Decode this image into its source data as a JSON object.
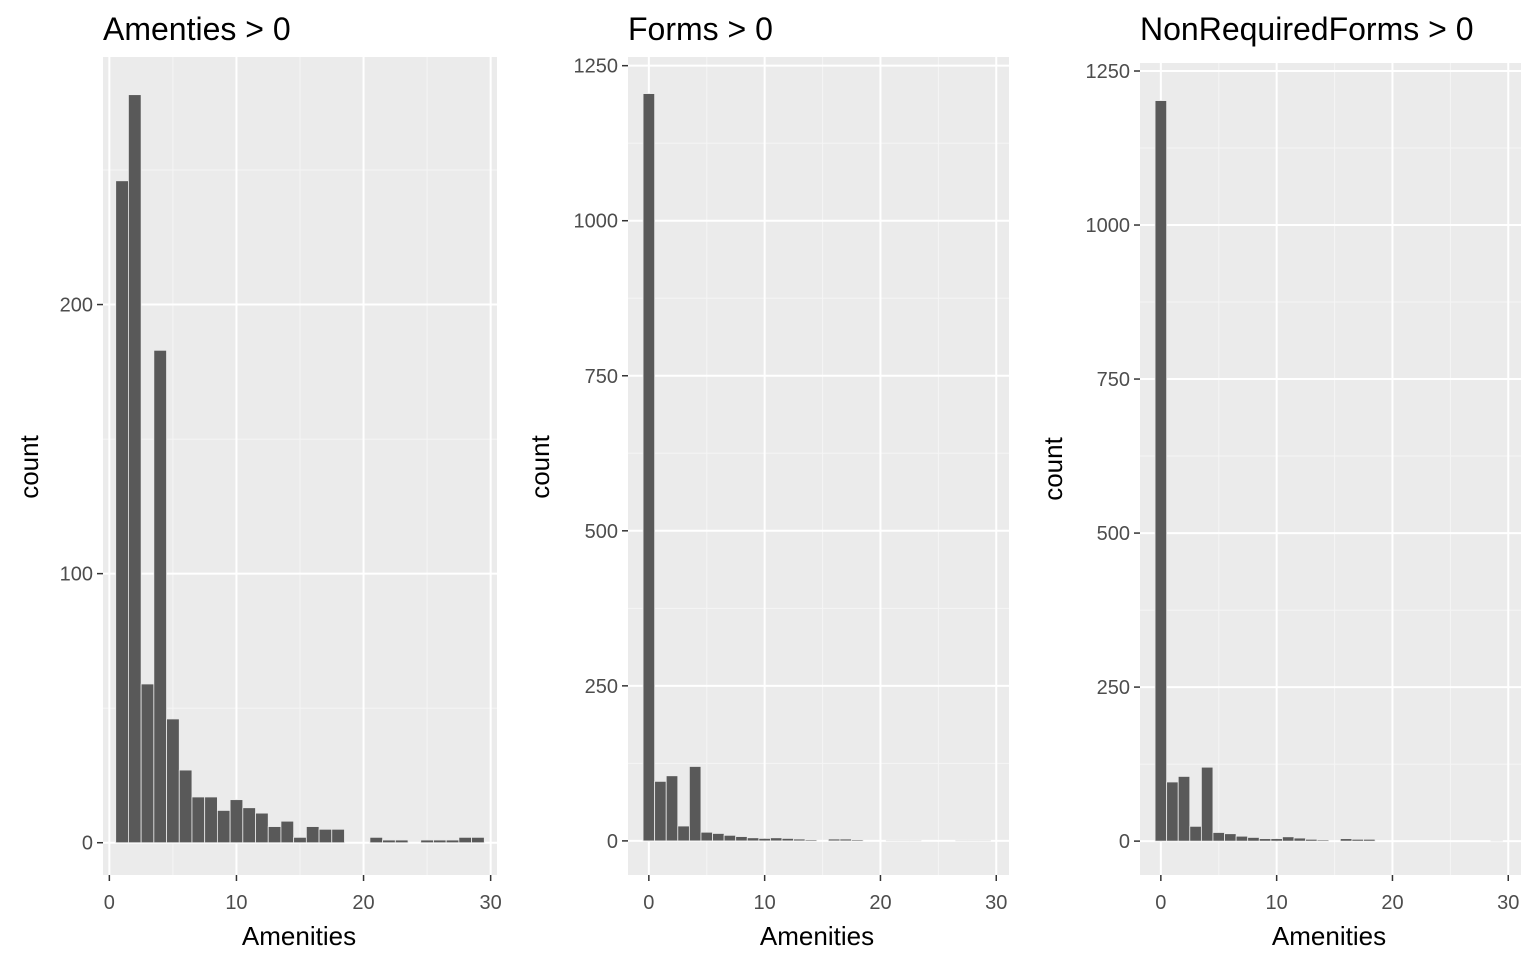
{
  "chart_data": [
    {
      "type": "bar",
      "title": "Amenties > 0",
      "xlabel": "Amenities",
      "ylabel": "count",
      "xlim": [
        -0.5,
        30.5
      ],
      "ylim": [
        -12,
        292
      ],
      "x_ticks": [
        0,
        10,
        20,
        30
      ],
      "y_ticks": [
        0,
        100,
        200
      ],
      "grid": true,
      "bin_width": 1,
      "bins": [
        {
          "x": 1,
          "y": 246
        },
        {
          "x": 2,
          "y": 278
        },
        {
          "x": 3,
          "y": 59
        },
        {
          "x": 4,
          "y": 183
        },
        {
          "x": 5,
          "y": 46
        },
        {
          "x": 6,
          "y": 27
        },
        {
          "x": 7,
          "y": 17
        },
        {
          "x": 8,
          "y": 17
        },
        {
          "x": 9,
          "y": 12
        },
        {
          "x": 10,
          "y": 16
        },
        {
          "x": 11,
          "y": 13
        },
        {
          "x": 12,
          "y": 11
        },
        {
          "x": 13,
          "y": 6
        },
        {
          "x": 14,
          "y": 8
        },
        {
          "x": 15,
          "y": 2
        },
        {
          "x": 16,
          "y": 6
        },
        {
          "x": 17,
          "y": 5
        },
        {
          "x": 18,
          "y": 5
        },
        {
          "x": 19,
          "y": 0
        },
        {
          "x": 20,
          "y": 0
        },
        {
          "x": 21,
          "y": 2
        },
        {
          "x": 22,
          "y": 1
        },
        {
          "x": 23,
          "y": 1
        },
        {
          "x": 24,
          "y": 0
        },
        {
          "x": 25,
          "y": 1
        },
        {
          "x": 26,
          "y": 1
        },
        {
          "x": 27,
          "y": 1
        },
        {
          "x": 28,
          "y": 2
        },
        {
          "x": 29,
          "y": 2
        }
      ]
    },
    {
      "type": "bar",
      "title": "Forms > 0",
      "xlabel": "Amenities",
      "ylabel": "count",
      "xlim": [
        -1.8,
        31.1
      ],
      "ylim": [
        -55,
        1264
      ],
      "x_ticks": [
        0,
        10,
        20,
        30
      ],
      "y_ticks": [
        0,
        250,
        500,
        750,
        1000,
        1250
      ],
      "grid": true,
      "bin_width": 1,
      "bins": [
        {
          "x": 0,
          "y": 1205
        },
        {
          "x": 1,
          "y": 96
        },
        {
          "x": 2,
          "y": 105
        },
        {
          "x": 3,
          "y": 24
        },
        {
          "x": 4,
          "y": 120
        },
        {
          "x": 5,
          "y": 14
        },
        {
          "x": 6,
          "y": 12
        },
        {
          "x": 7,
          "y": 9
        },
        {
          "x": 8,
          "y": 7
        },
        {
          "x": 9,
          "y": 5
        },
        {
          "x": 10,
          "y": 4
        },
        {
          "x": 11,
          "y": 5
        },
        {
          "x": 12,
          "y": 4
        },
        {
          "x": 13,
          "y": 3
        },
        {
          "x": 14,
          "y": 2
        },
        {
          "x": 15,
          "y": 0
        },
        {
          "x": 16,
          "y": 3
        },
        {
          "x": 17,
          "y": 3
        },
        {
          "x": 18,
          "y": 2
        },
        {
          "x": 19,
          "y": 0
        },
        {
          "x": 20,
          "y": 0
        },
        {
          "x": 21,
          "y": 1
        },
        {
          "x": 22,
          "y": 1
        },
        {
          "x": 23,
          "y": 1
        },
        {
          "x": 24,
          "y": 0
        },
        {
          "x": 25,
          "y": 0
        },
        {
          "x": 26,
          "y": 0
        },
        {
          "x": 27,
          "y": 1
        },
        {
          "x": 28,
          "y": 1
        },
        {
          "x": 29,
          "y": 1
        }
      ]
    },
    {
      "type": "bar",
      "title": "NonRequiredForms > 0",
      "xlabel": "Amenities",
      "ylabel": "count",
      "xlim": [
        -1.8,
        31.1
      ],
      "ylim": [
        -55,
        1263
      ],
      "x_ticks": [
        0,
        10,
        20,
        30
      ],
      "y_ticks": [
        0,
        250,
        500,
        750,
        1000,
        1250
      ],
      "grid": true,
      "bin_width": 1,
      "bins": [
        {
          "x": 0,
          "y": 1202
        },
        {
          "x": 1,
          "y": 96
        },
        {
          "x": 2,
          "y": 105
        },
        {
          "x": 3,
          "y": 24
        },
        {
          "x": 4,
          "y": 120
        },
        {
          "x": 5,
          "y": 14
        },
        {
          "x": 6,
          "y": 12
        },
        {
          "x": 7,
          "y": 8
        },
        {
          "x": 8,
          "y": 6
        },
        {
          "x": 9,
          "y": 4
        },
        {
          "x": 10,
          "y": 4
        },
        {
          "x": 11,
          "y": 7
        },
        {
          "x": 12,
          "y": 5
        },
        {
          "x": 13,
          "y": 3
        },
        {
          "x": 14,
          "y": 2
        },
        {
          "x": 15,
          "y": 0
        },
        {
          "x": 16,
          "y": 4
        },
        {
          "x": 17,
          "y": 3
        },
        {
          "x": 18,
          "y": 3
        },
        {
          "x": 19,
          "y": 0
        },
        {
          "x": 20,
          "y": 0
        },
        {
          "x": 21,
          "y": 0
        },
        {
          "x": 22,
          "y": 0
        },
        {
          "x": 23,
          "y": 0
        },
        {
          "x": 24,
          "y": 0
        },
        {
          "x": 25,
          "y": 0
        },
        {
          "x": 26,
          "y": 0
        },
        {
          "x": 27,
          "y": 0
        },
        {
          "x": 28,
          "y": 0
        },
        {
          "x": 29,
          "y": 1
        }
      ]
    }
  ],
  "colors": {
    "panel_background": "#ebebeb",
    "grid_major": "#ffffff",
    "grid_minor": "#f5f5f5",
    "bar_fill": "#595959",
    "tick_text": "#4d4d4d",
    "tick_mark": "#333333"
  }
}
